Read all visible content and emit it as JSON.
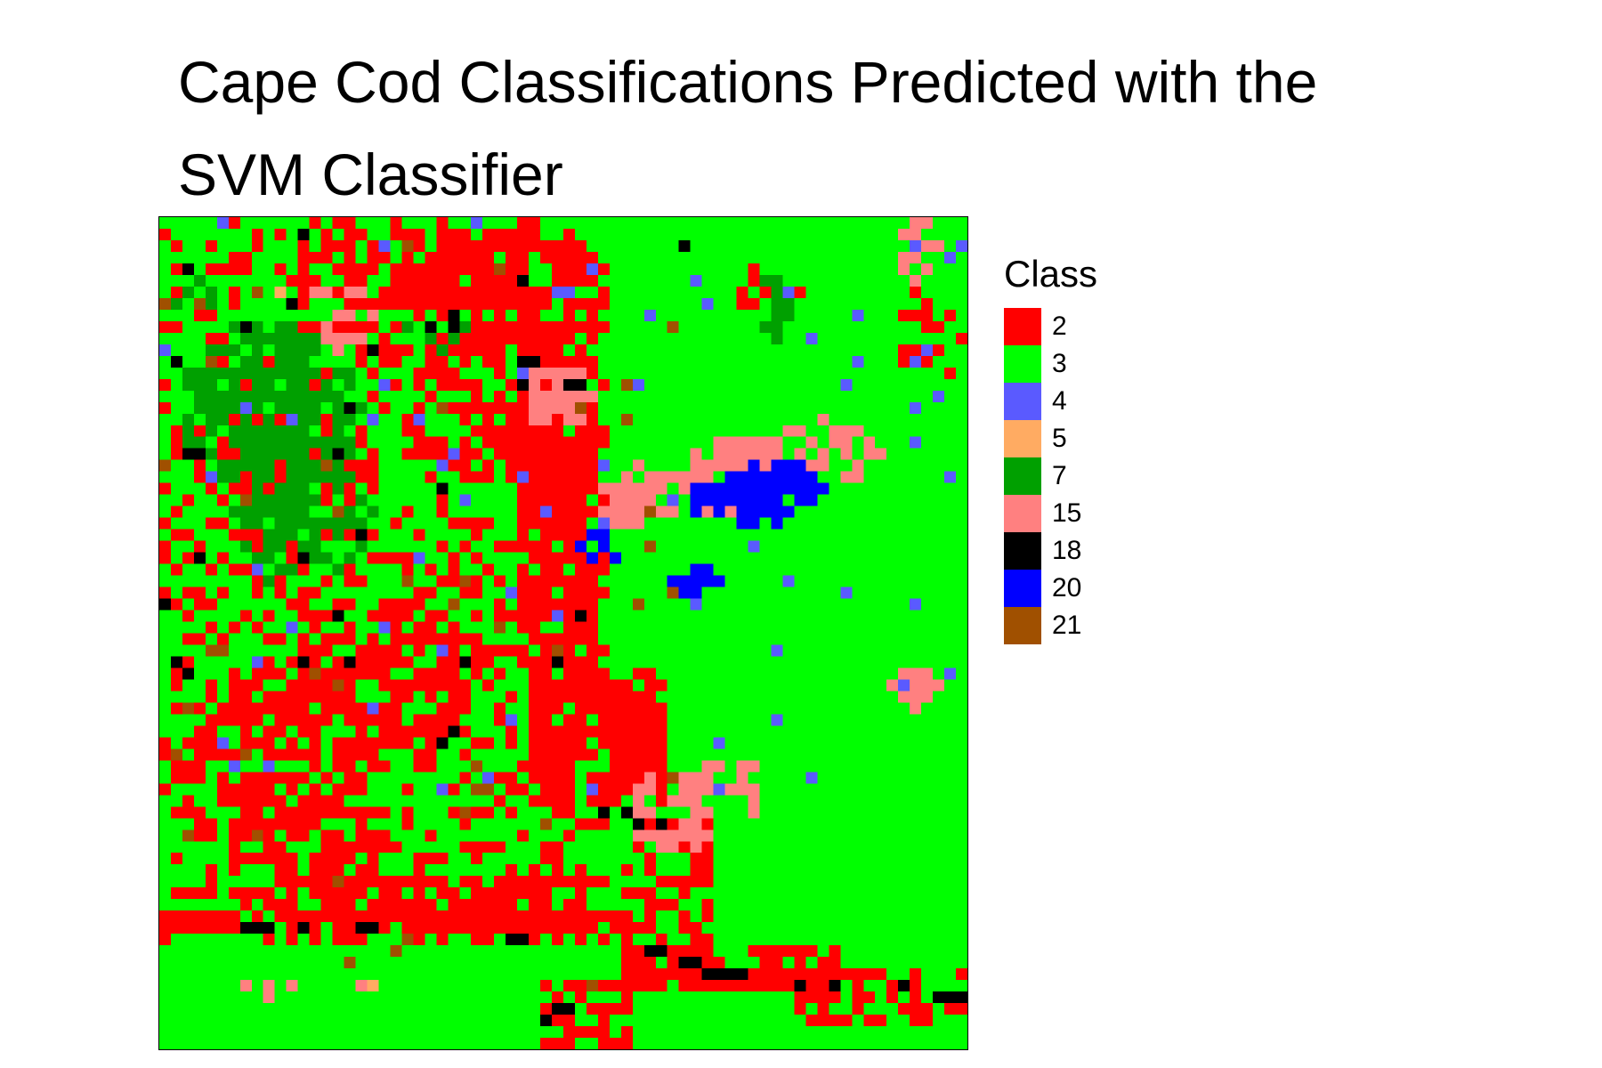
{
  "title": "Cape Cod Classifications Predicted with the SVM Classifier",
  "legend": {
    "title": "Class",
    "items": [
      {
        "label": "2",
        "color": "#ff0000"
      },
      {
        "label": "3",
        "color": "#00ff00"
      },
      {
        "label": "4",
        "color": "#5a5aff"
      },
      {
        "label": "5",
        "color": "#ffab62"
      },
      {
        "label": "7",
        "color": "#00a000"
      },
      {
        "label": "15",
        "color": "#ff8080"
      },
      {
        "label": "18",
        "color": "#000000"
      },
      {
        "label": "20",
        "color": "#0000ff"
      },
      {
        "label": "21",
        "color": "#a05000"
      }
    ]
  },
  "chart_data": {
    "type": "heatmap",
    "title": "Cape Cod Classifications Predicted with the SVM Classifier",
    "grid_size": [
      70,
      72
    ],
    "background_class": "3",
    "classes": [
      "2",
      "3",
      "4",
      "5",
      "7",
      "15",
      "18",
      "20",
      "21"
    ],
    "legend_title": "Class",
    "legend_placement": "right"
  }
}
